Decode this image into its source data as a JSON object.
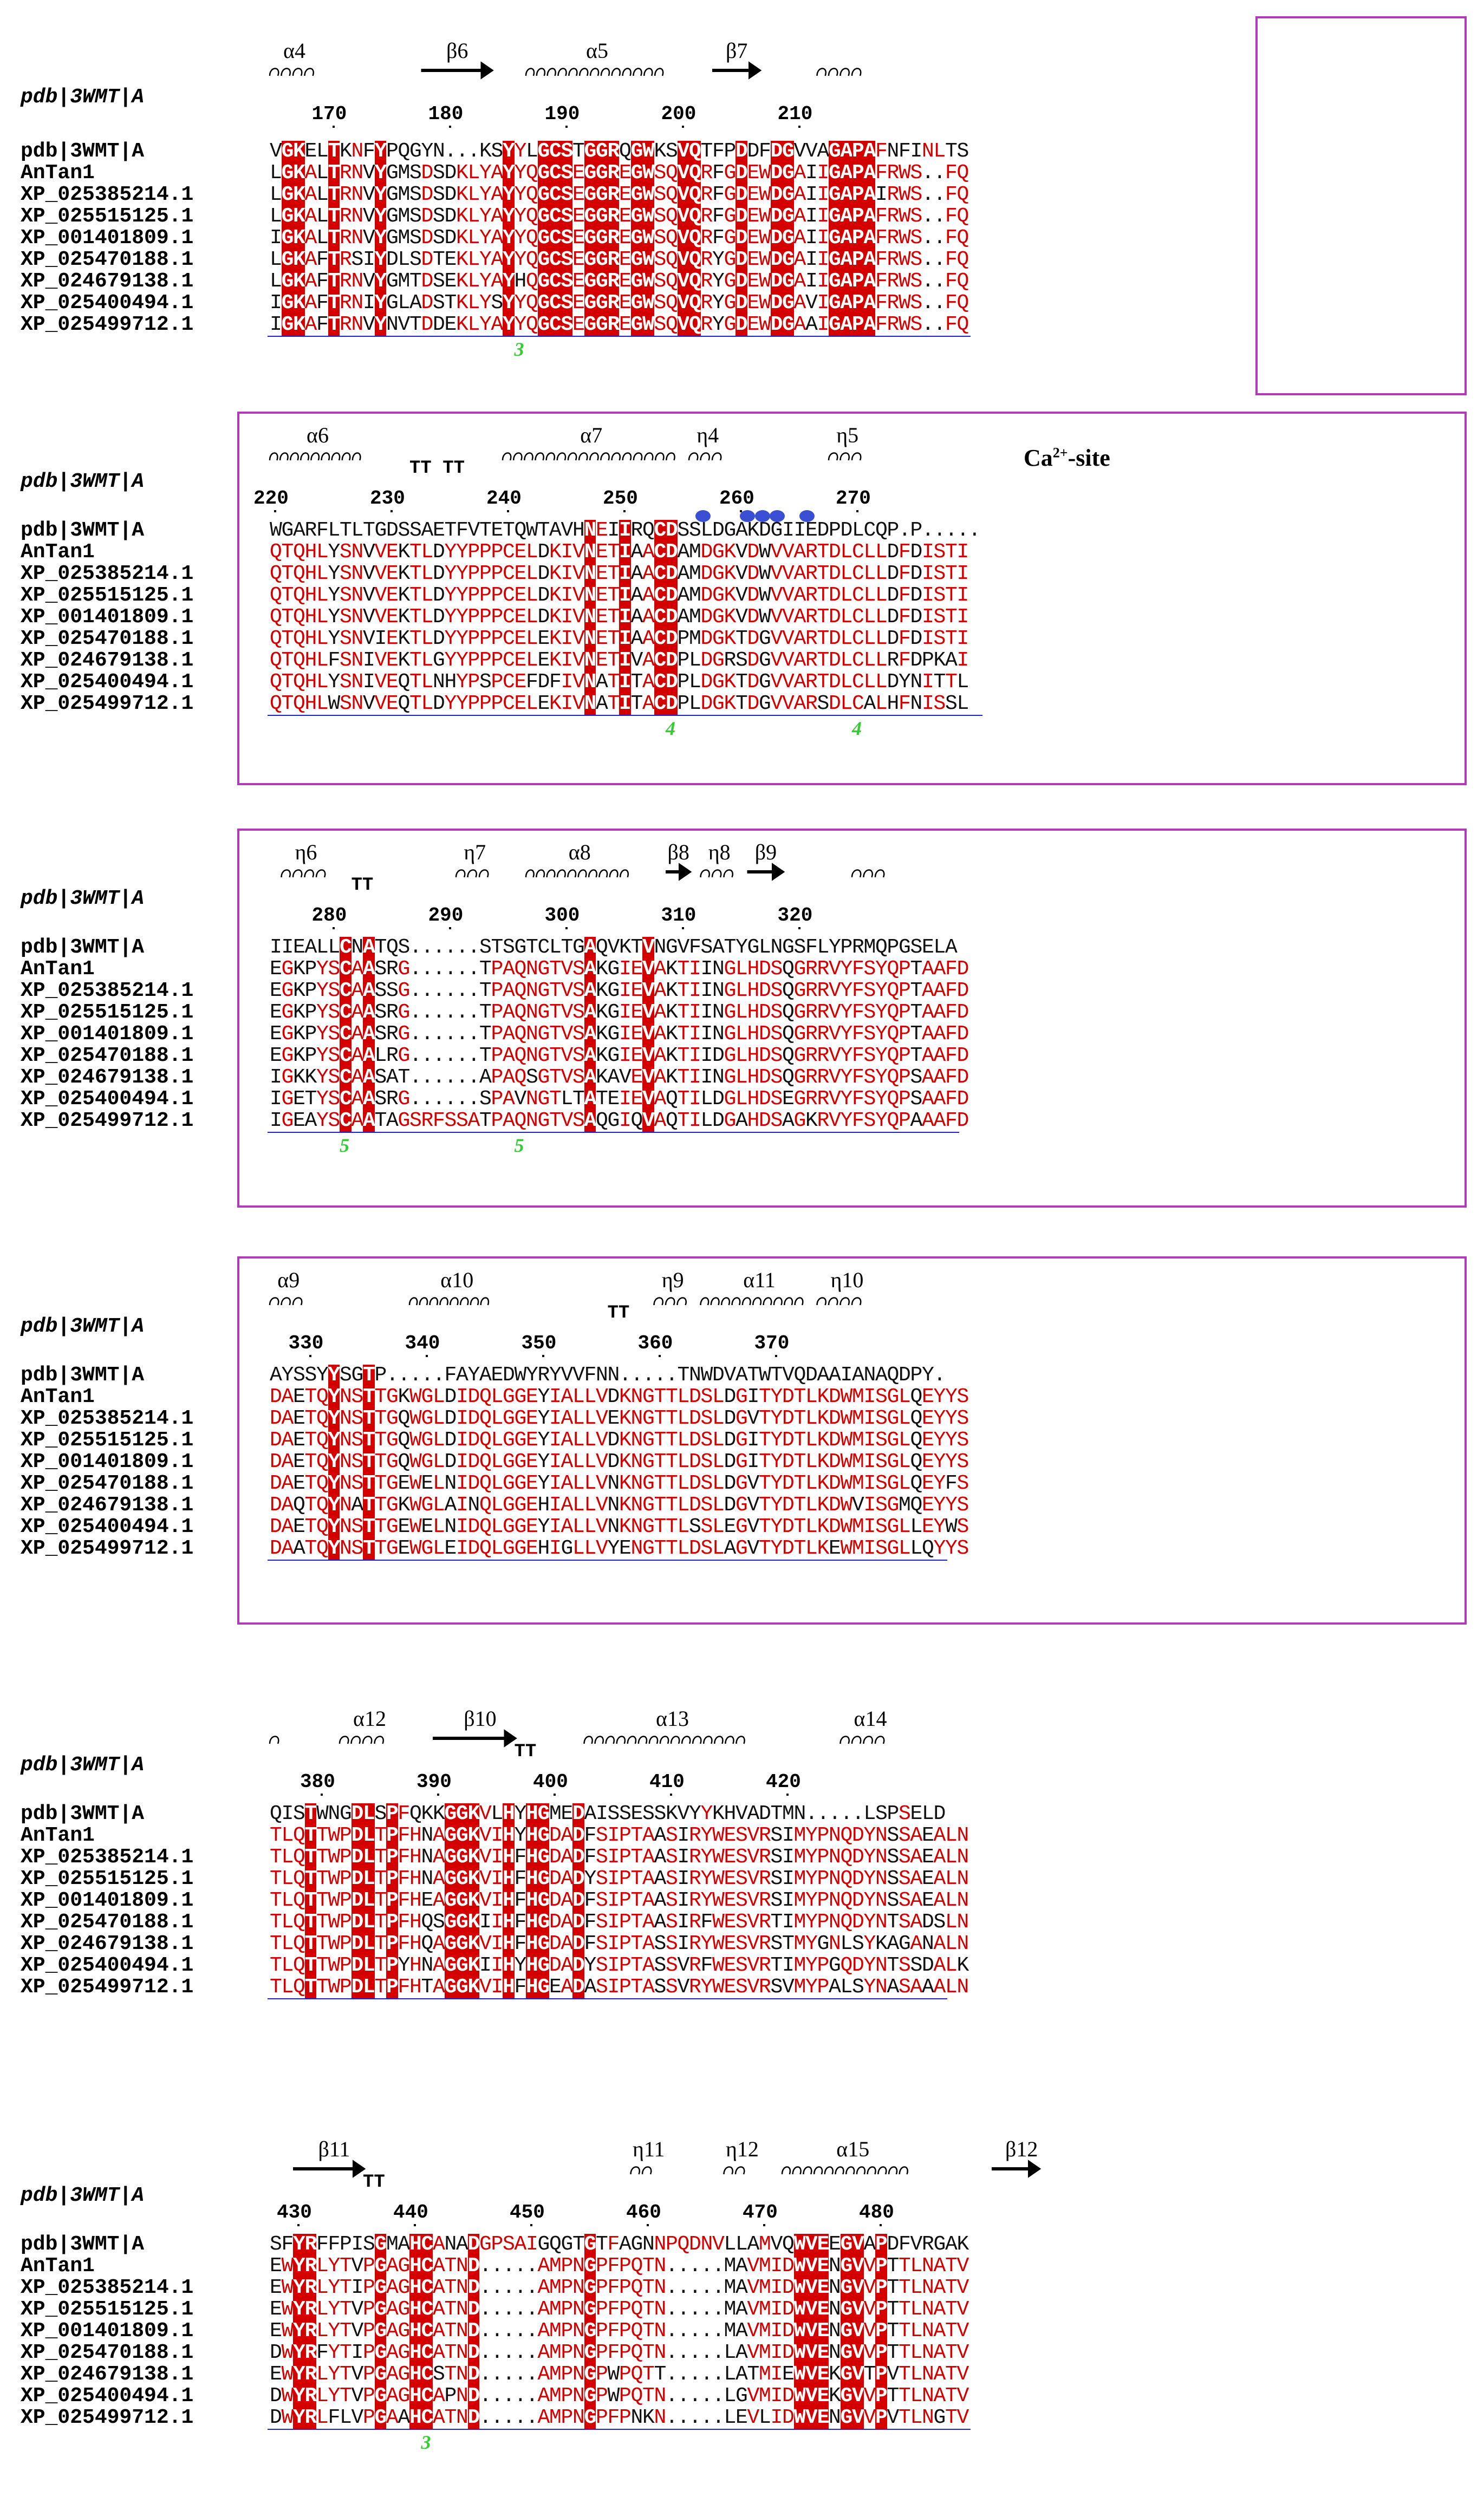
{
  "seq_names": [
    "pdb|3WMT|A",
    "AnTan1",
    "XP_025385214.1",
    "XP_025515125.1",
    "XP_001401809.1",
    "XP_025470188.1",
    "XP_024679138.1",
    "XP_025400494.1",
    "XP_025499712.1"
  ],
  "ref_label": "pdb|3WMT|A",
  "ca_site": "Ca2+-site",
  "blocks": [
    {
      "start_col": 0,
      "numbers": [
        {
          "n": "170",
          "col": 5
        },
        {
          "n": "180",
          "col": 15
        },
        {
          "n": "190",
          "col": 25
        },
        {
          "n": "200",
          "col": 35
        },
        {
          "n": "210",
          "col": 45
        }
      ],
      "ss": [
        {
          "type": "helix",
          "label": "α4",
          "col0": 0,
          "col1": 4
        },
        {
          "type": "strand",
          "label": "β6",
          "col0": 13,
          "col1": 19
        },
        {
          "type": "helix",
          "label": "α5",
          "col0": 22,
          "col1": 34
        },
        {
          "type": "strand",
          "label": "β7",
          "col0": 38,
          "col1": 42
        },
        {
          "type": "helix",
          "label": "",
          "col0": 47,
          "col1": 51
        }
      ],
      "disulfide": [
        {
          "label": "3",
          "col": 21
        }
      ],
      "rows": [
        "VGKELTKNFYPQGYN...KSYYLGCSTGGRQGWKSVQTFPDDFDGVVAGAPAFNFINLTS",
        "LGKALTRNVYGMSDSDKLYAYYQGCSEGGREGWSQVQRFGDEWDGAIIGAPAFRWS..FQ",
        "LGKALTRNVYGMSDSDKLYAYYQGCSEGGREGWSQVQRFGDEWDGAIIGAPAIRWS..FQ",
        "LGKALTRNVYGMSDSDKLYAYYQGCSEGGREGWSQVQRFGDEWDGAIIGAPAFRWS..FQ",
        "IGKALTRNVYGMSDSDKLYAYYQGCSEGGREGWSQVQRFGDEWDGAIIGAPAFRWS..FQ",
        "LGKAFTRSIYDLSDTEKLYAYYQGCSEGGREGWSQVQRYGDEWDGAIIGAPAFRWS..FQ",
        "LGKAFTRNVYGMTDSEKLYAYHQGCSEGGREGWSQVQRYGDEWDGAIIGAPAFRWS..FQ",
        "IGKAFTRNIYGLADSTKLYSYYQGCSEGGREGWSQVQRYGDEWDGAVIGAPAFRWS..FQ",
        "IGKAFTRNVYNVTDDEKLYAYYQGCSEGGREGWSQVQRYGDEWDGAAIGAPAFRWS..FQ"
      ]
    },
    {
      "start_col": 0,
      "numbers": [
        {
          "n": "220",
          "col": 0
        },
        {
          "n": "230",
          "col": 10
        },
        {
          "n": "240",
          "col": 20
        },
        {
          "n": "250",
          "col": 30
        },
        {
          "n": "260",
          "col": 40
        },
        {
          "n": "270",
          "col": 50
        }
      ],
      "ss": [
        {
          "type": "helix",
          "label": "α6",
          "col0": 0,
          "col1": 8
        },
        {
          "type": "text",
          "label": "TT TT",
          "col0": 12,
          "col1": 17
        },
        {
          "type": "helix",
          "label": "α7",
          "col0": 20,
          "col1": 35
        },
        {
          "type": "helix",
          "label": "η4",
          "col0": 36,
          "col1": 39
        },
        {
          "type": "helix",
          "label": "η5",
          "col0": 48,
          "col1": 51
        }
      ],
      "disulfide": [
        {
          "label": "4",
          "col": 34
        },
        {
          "label": "4",
          "col": 50
        }
      ],
      "rows": [
        "WGARFLTLTGDSSAETFVTETQWTAVHNEIIRQCDSSLDGAKDGIIEDPDLCQP.P.....",
        "QTQHLYSNVVEKTLDYYPPPCELDKIVNETIAACDAMDGKVDWVVARTDLCLLDFDISTI",
        "QTQHLYSNVVEKTLDYYPPPCELDKIVNETIAACDAMDGKVDWVVARTDLCLLDFDISTI",
        "QTQHLYSNVVEKTLDYYPPPCELDKIVNETIAACDAMDGKVDWVVARTDLCLLDFDISTI",
        "QTQHLYSNVVEKTLDYYPPPCELDKIVNETIAACDAMDGKVDWVVARTDLCLLDFDISTI",
        "QTQHLYSNVIEKTLDYYPPPCELEKIVNETIAACDPMDGKTDGVVARTDLCLLDFDISTI",
        "QTQHLFSNIVEKTLGYYPPPCELEKIVNETIVACDPLDGRSDGVVARTDLCLLRFDPKAI",
        "QTQHLYSNIVEQTLNHYPSPCEFDFIVNATITACDPLDGKTDGVVARTDLCLLDYNITTL",
        "QTQHLWSNVVEQTLDYYPPPCELEKIVNATITACDPLDGKTDGVVARSDLCALHFNISSL"
      ]
    },
    {
      "start_col": 0,
      "numbers": [
        {
          "n": "280",
          "col": 5
        },
        {
          "n": "290",
          "col": 15
        },
        {
          "n": "300",
          "col": 25
        },
        {
          "n": "310",
          "col": 35
        },
        {
          "n": "320",
          "col": 45
        }
      ],
      "ss": [
        {
          "type": "helix",
          "label": "η6",
          "col0": 1,
          "col1": 5
        },
        {
          "type": "text",
          "label": "TT",
          "col0": 7,
          "col1": 9
        },
        {
          "type": "helix",
          "label": "η7",
          "col0": 16,
          "col1": 19
        },
        {
          "type": "helix",
          "label": "α8",
          "col0": 22,
          "col1": 31
        },
        {
          "type": "strand",
          "label": "β8",
          "col0": 34,
          "col1": 36
        },
        {
          "type": "helix",
          "label": "η8",
          "col0": 37,
          "col1": 40
        },
        {
          "type": "strand",
          "label": "β9",
          "col0": 41,
          "col1": 44
        },
        {
          "type": "helix",
          "label": "",
          "col0": 50,
          "col1": 53
        }
      ],
      "disulfide": [
        {
          "label": "5",
          "col": 6
        },
        {
          "label": "5",
          "col": 21
        }
      ],
      "rows": [
        "IIEALLCNATQS......STSGTCLTGAQVKTVNGVFSATYGLNGSFLYPRMQPGSELA",
        "EGKPYSCAASRG......TPAQNGTVSAKGIEVAKTIINGLHDSQGRRVYFSYQPTAAFD",
        "EGKPYSCAASSG......TPAQNGTVSAKGIEVAKTIINGLHDSQGRRVYFSYQPTAAFD",
        "EGKPYSCAASRG......TPAQNGTVSAKGIEVAKTIINGLHDSQGRRVYFSYQPTAAFD",
        "EGKPYSCAASRG......TPAQNGTVSAKGIEVAKTIINGLHDSQGRRVYFSYQPTAAFD",
        "EGKPYSCAALRG......TPAQNGTVSAKGIEVAKTIIDGLHDSQGRRVYFSYQPTAAFD",
        "IGKKYSCAASAT......APAQSGTVSAKAVEVAKTIINGLHDSQGRRVYFSYQPSAAFD",
        "IGETYSCAASRG......SPAVNGTLTATEIEVAQTILDGLHDSEGRRVYFSYQPSAAFD",
        "IGEAYSCAATAGSRFSSATPAQNGTVSAQGIQVAQTILDGAHDSAGKRVYFSYQPAAAFD"
      ]
    },
    {
      "start_col": 0,
      "numbers": [
        {
          "n": "330",
          "col": 3
        },
        {
          "n": "340",
          "col": 13
        },
        {
          "n": "350",
          "col": 23
        },
        {
          "n": "360",
          "col": 33
        },
        {
          "n": "370",
          "col": 43
        }
      ],
      "ss": [
        {
          "type": "helix",
          "label": "α9",
          "col0": 0,
          "col1": 3
        },
        {
          "type": "helix",
          "label": "α10",
          "col0": 12,
          "col1": 19
        },
        {
          "type": "text",
          "label": "TT",
          "col0": 29,
          "col1": 31
        },
        {
          "type": "helix",
          "label": "η9",
          "col0": 33,
          "col1": 36
        },
        {
          "type": "helix",
          "label": "α11",
          "col0": 37,
          "col1": 46
        },
        {
          "type": "helix",
          "label": "η10",
          "col0": 47,
          "col1": 51
        }
      ],
      "disulfide": [],
      "rows": [
        "AYSSYYSGTP.....FAYAEDWYRYVVFNN.....TNWDVATWTVQDAAIANAQDPY.",
        "DAETQYNSTTGKWGLDIDQLGGEYIALLVDKNGTTLDSLDGITYDTLKDWMISGLQEYYS",
        "DAETQYNSTTGQWGLDIDQLGGEYIALLVEKNGTTLDSLDGVTYDTLKDWMISGLQEYYS",
        "DAETQYNSTTGQWGLDIDQLGGEYIALLVDKNGTTLDSLDGITYDTLKDWMISGLQEYYS",
        "DAETQYNSTTGQWGLDIDQLGGEYIALLVDKNGTTLDSLDGITYDTLKDWMISGLQEYYS",
        "DAETQYNSTTGEWELNIDQLGGEYIALLVNKNGTTLDSLDGVTYDTLKDWMISGLQEYFS",
        "DAQTQYNATTGKWGLAINQLGGEHIALLVNKNGTTLDSLDGVTYDTLKDWVISGMQEYYS",
        "DAETQYNSTTGEWELNIDQLGGEYIALLVNKNGTTLSSLEGVTYDTLKDWMISGLLEYWS",
        "DAATQYNSTTGEWGLEIDQLGGEHIGLLVYENGTTLDSLAGVTYDTLKEWMISGLLQYYS"
      ]
    },
    {
      "start_col": 0,
      "numbers": [
        {
          "n": "380",
          "col": 4
        },
        {
          "n": "390",
          "col": 14
        },
        {
          "n": "400",
          "col": 24
        },
        {
          "n": "410",
          "col": 34
        },
        {
          "n": "420",
          "col": 44
        }
      ],
      "ss": [
        {
          "type": "helix",
          "label": "",
          "col0": 0,
          "col1": 1
        },
        {
          "type": "helix",
          "label": "α12",
          "col0": 6,
          "col1": 10
        },
        {
          "type": "strand",
          "label": "β10",
          "col0": 14,
          "col1": 21
        },
        {
          "type": "text",
          "label": "TT",
          "col0": 21,
          "col1": 23
        },
        {
          "type": "helix",
          "label": "α13",
          "col0": 27,
          "col1": 41
        },
        {
          "type": "helix",
          "label": "α14",
          "col0": 49,
          "col1": 53
        }
      ],
      "disulfide": [],
      "rows": [
        "QISTWNGDLSPFQKKGGKVLHYHGMEDAISSESSKVYYKHVADTMN.....LSPSELD",
        "TLQTTWPDLTPFHNAGGKVIHYHGDADFSIPTAASIRYWESVRSIMYPNQDYNSSAEALN",
        "TLQTTWPDLTPFHNAGGKVIHFHGDADFSIPTAASIRYWESVRSIMYPNQDYNSSAEALN",
        "TLQTTWPDLTPFHNAGGKVIHFHGDADYSIPTAASIRYWESVRSIMYPNQDYNSSAEALN",
        "TLQTTWPDLTPFHEAGGKVIHFHGDADFSIPTAASIRYWESVRSIMYPNQDYNSSAEALN",
        "TLQTTWPDLTPFHQSGGKIIHFHGDADFSIPTAASIRFWESVRTIMYPNQDYNTSADSLN",
        "TLQTTWPDLTPFHQAGGKVIHFHGDADFSIPTASSIRYWESVRSTMYGNLSYKAGANALN",
        "TLQTTWPDLTPYHNAGGKIIHYHGDADYSIPTASSVRFWESVRTIMYPGQDYNTSSDALK",
        "TLQTTWPDLTPFHTAGGKVIHFHGEADASIPTASSVRYWESVRSVMYPALSYNASAAALN"
      ]
    },
    {
      "start_col": 0,
      "numbers": [
        {
          "n": "430",
          "col": 2
        },
        {
          "n": "440",
          "col": 12
        },
        {
          "n": "450",
          "col": 22
        },
        {
          "n": "460",
          "col": 32
        },
        {
          "n": "470",
          "col": 42
        },
        {
          "n": "480",
          "col": 52
        }
      ],
      "ss": [
        {
          "type": "strand",
          "label": "β11",
          "col0": 2,
          "col1": 8
        },
        {
          "type": "text",
          "label": "TT",
          "col0": 8,
          "col1": 10
        },
        {
          "type": "helix",
          "label": "η11",
          "col0": 31,
          "col1": 33
        },
        {
          "type": "helix",
          "label": "η12",
          "col0": 39,
          "col1": 41
        },
        {
          "type": "helix",
          "label": "α15",
          "col0": 44,
          "col1": 55
        },
        {
          "type": "strand",
          "label": "β12",
          "col0": 62,
          "col1": 66
        }
      ],
      "disulfide": [
        {
          "label": "3",
          "col": 13
        }
      ],
      "rows": [
        "SFYRFFPISGMAHCANADGPSAIGQGTGTFAGNNPQDNVLLAMVQWVEEGVAPDFVRGAK",
        "EWYRLYTVPGAGHCATND.....AMPNGPFPQTN.....MAVMIDWVENGVVPTTLNATV",
        "EWYRLYTIPGAGHCATND.....AMPNGPFPQTN.....MAVMIDWVENGVVPTTLNATV",
        "EWYRLYTVPGAGHCATND.....AMPNGPFPQTN.....MAVMIDWVENGVVPTTLNATV",
        "EWYRLYTVPGAGHCATND.....AMPNGPFPQTN.....MAVMIDWVENGVVPTTLNATV",
        "DWYRFYTIPGAGHCATND.....AMPNGPFPQTN.....LAVMIDWVENGVVPTTLNATV",
        "EWYRLYTVPGAGHCSTND.....AMPNGPWPQTT.....LATMIEWVEKGVTPVTLNATV",
        "DWYRLYTVPGAGHCAPND.....AMPNGPWPQTN.....LGVMIDWVEKGVVPTTLNATV",
        "DWYRLFLVPGAAHCATND.....AMPNGPFPNKN.....LEVLIDWVENGVVPVTLNGTV"
      ]
    }
  ]
}
